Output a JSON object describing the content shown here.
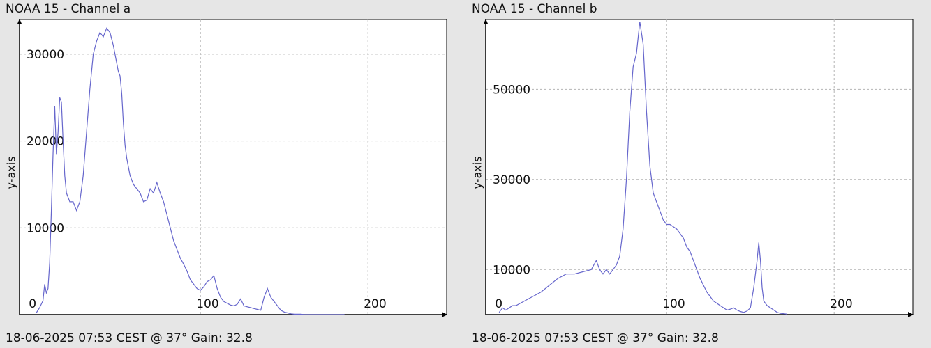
{
  "chart_data": [
    {
      "type": "line",
      "title": "NOAA 15 - Channel a",
      "footer": "18-06-2025 07:53 CEST @ 37° Gain: 32.8",
      "ylabel": "y-axis",
      "xlim": [
        -8,
        247
      ],
      "ylim": [
        0,
        34000
      ],
      "xticks": [
        0,
        100,
        200
      ],
      "yticks": [
        10000,
        20000,
        30000
      ],
      "grid": true,
      "line_color": "#6666cc",
      "series": [
        {
          "x": [
            2,
            4,
            6,
            7,
            8,
            9,
            10,
            11,
            12,
            13,
            14,
            15,
            16,
            17,
            18,
            19,
            20,
            22,
            24,
            26,
            28,
            30,
            32,
            34,
            36,
            38,
            40,
            42,
            44,
            46,
            48,
            50,
            51,
            52,
            53,
            54,
            55,
            56,
            58,
            60,
            62,
            64,
            66,
            68,
            70,
            72,
            74,
            76,
            78,
            80,
            82,
            84,
            86,
            88,
            90,
            92,
            94,
            96,
            98,
            100,
            102,
            104,
            106,
            108,
            110,
            112,
            114,
            116,
            118,
            120,
            122,
            124,
            126,
            128,
            130,
            132,
            134,
            136,
            138,
            140,
            142,
            144,
            146,
            148,
            150,
            152,
            154,
            156,
            158,
            160,
            162,
            164,
            166,
            168,
            170,
            172,
            174,
            176,
            178,
            180,
            182,
            184,
            186
          ],
          "values": [
            200,
            800,
            1600,
            3500,
            2500,
            3000,
            6000,
            12000,
            18500,
            24000,
            18500,
            21000,
            25000,
            24500,
            20000,
            16000,
            14000,
            13000,
            13000,
            12000,
            13000,
            16000,
            21000,
            26000,
            30000,
            31500,
            32500,
            32000,
            33000,
            32500,
            31000,
            29000,
            28000,
            27500,
            25500,
            22000,
            19500,
            18000,
            16000,
            15000,
            14500,
            14000,
            13000,
            13200,
            14500,
            14000,
            15200,
            14000,
            13000,
            11500,
            10000,
            8500,
            7500,
            6500,
            5800,
            5000,
            4000,
            3500,
            3000,
            2800,
            3200,
            3800,
            4000,
            4500,
            3000,
            2000,
            1500,
            1300,
            1100,
            1000,
            1200,
            1800,
            1000,
            900,
            800,
            700,
            600,
            500,
            2000,
            3000,
            2000,
            1500,
            1000,
            500,
            300,
            200,
            100,
            50,
            50,
            50,
            0,
            0,
            0,
            0,
            0,
            0,
            0,
            0,
            0,
            0,
            0,
            0,
            0
          ]
        }
      ]
    },
    {
      "type": "line",
      "title": "NOAA 15 - Channel b",
      "footer": "18-06-2025 07:53 CEST @ 37° Gain: 32.8",
      "ylabel": "y-axis",
      "xlim": [
        -8,
        247
      ],
      "ylim": [
        0,
        65500
      ],
      "xticks": [
        0,
        100,
        200
      ],
      "yticks": [
        10000,
        30000,
        50000
      ],
      "grid": true,
      "line_color": "#6666cc",
      "series": [
        {
          "x": [
            0,
            2,
            4,
            6,
            8,
            10,
            15,
            20,
            25,
            30,
            35,
            40,
            45,
            50,
            55,
            58,
            60,
            62,
            64,
            66,
            68,
            70,
            72,
            74,
            76,
            78,
            80,
            82,
            84,
            86,
            88,
            90,
            92,
            94,
            96,
            98,
            100,
            102,
            104,
            106,
            108,
            110,
            112,
            114,
            116,
            118,
            120,
            122,
            124,
            126,
            128,
            130,
            132,
            134,
            136,
            138,
            140,
            142,
            144,
            146,
            148,
            150,
            152,
            154,
            155,
            156,
            157,
            158,
            160,
            162,
            164,
            166,
            168,
            170,
            172
          ],
          "values": [
            500,
            1500,
            1000,
            1500,
            2000,
            2000,
            3000,
            4000,
            5000,
            6500,
            8000,
            9000,
            9000,
            9500,
            10000,
            12000,
            10000,
            9000,
            10000,
            9000,
            10000,
            11000,
            13000,
            19000,
            30000,
            45000,
            55000,
            58000,
            65000,
            60000,
            45000,
            33000,
            27000,
            25000,
            23000,
            21000,
            20000,
            20000,
            19500,
            19000,
            18000,
            17000,
            15000,
            14000,
            12000,
            10000,
            8000,
            6500,
            5000,
            4000,
            3000,
            2500,
            2000,
            1500,
            1000,
            1200,
            1500,
            1000,
            700,
            500,
            800,
            1500,
            6000,
            12000,
            16000,
            12000,
            6000,
            3000,
            2000,
            1500,
            1000,
            500,
            300,
            200,
            100
          ]
        }
      ]
    }
  ]
}
